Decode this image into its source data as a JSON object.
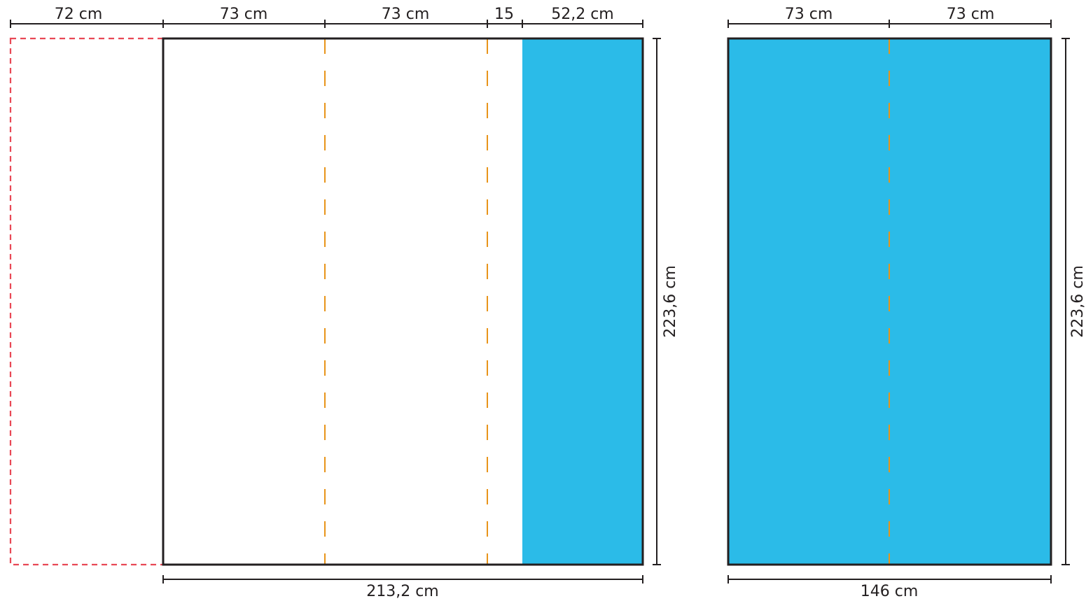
{
  "colors": {
    "fill_blue": "#2bbbe8",
    "fold_line": "#e8941a",
    "ghost_outline": "#e84855",
    "line": "#231f20"
  },
  "left_panel": {
    "top_dims": [
      "72 cm",
      "73 cm",
      "73 cm",
      "15",
      "52,2 cm"
    ],
    "bottom_dim": "213,2 cm",
    "height_dim": "223,6 cm"
  },
  "right_panel": {
    "top_dims": [
      "73 cm",
      "73 cm"
    ],
    "bottom_dim": "146 cm",
    "height_dim": "223,6 cm"
  }
}
